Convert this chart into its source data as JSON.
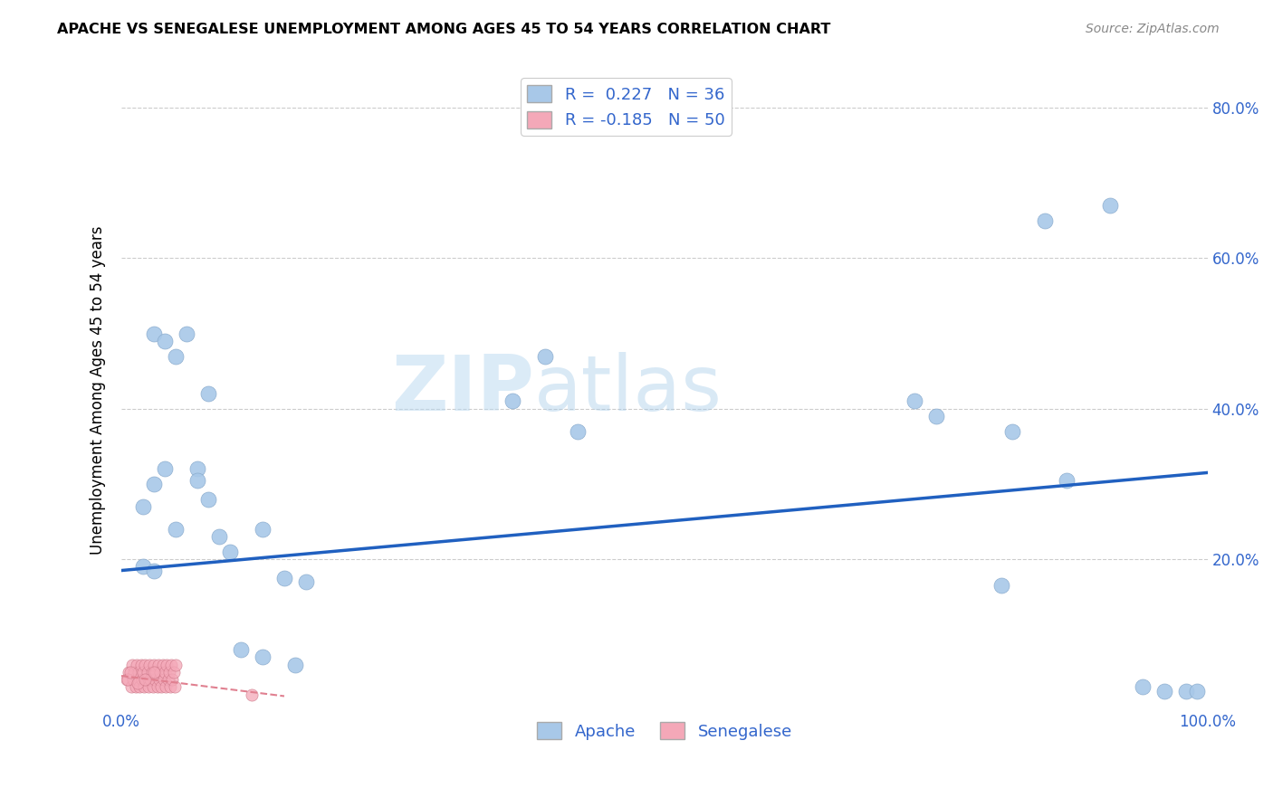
{
  "title": "APACHE VS SENEGALESE UNEMPLOYMENT AMONG AGES 45 TO 54 YEARS CORRELATION CHART",
  "source": "Source: ZipAtlas.com",
  "ylabel": "Unemployment Among Ages 45 to 54 years",
  "xlim": [
    0.0,
    1.0
  ],
  "ylim": [
    0.0,
    0.85
  ],
  "xticks": [
    0.0,
    0.5,
    1.0
  ],
  "xticklabels": [
    "0.0%",
    "",
    "100.0%"
  ],
  "yticks": [
    0.2,
    0.4,
    0.6,
    0.8
  ],
  "yticklabels": [
    "20.0%",
    "40.0%",
    "60.0%",
    "80.0%"
  ],
  "apache_R": 0.227,
  "apache_N": 36,
  "senegalese_R": -0.185,
  "senegalese_N": 50,
  "apache_color": "#a8c8e8",
  "senegalese_color": "#f4a8b8",
  "apache_line_color": "#2060c0",
  "senegalese_line_color": "#e08090",
  "grid_color": "#cccccc",
  "watermark_color": "#d0e8f8",
  "apache_line_x0": 0.0,
  "apache_line_y0": 0.185,
  "apache_line_x1": 1.0,
  "apache_line_y1": 0.315,
  "senegalese_line_x0": 0.0,
  "senegalese_line_y0": 0.045,
  "senegalese_line_x1": 0.15,
  "senegalese_line_y1": 0.018,
  "apache_x": [
    0.02,
    0.03,
    0.03,
    0.04,
    0.05,
    0.06,
    0.07,
    0.08,
    0.08,
    0.1,
    0.13,
    0.15,
    0.36,
    0.39,
    0.42,
    0.73,
    0.75,
    0.82,
    0.85,
    0.91,
    0.94,
    0.96,
    0.98,
    0.99,
    0.81,
    0.87,
    0.02,
    0.03,
    0.04,
    0.05,
    0.07,
    0.09,
    0.11,
    0.13,
    0.16,
    0.17
  ],
  "apache_y": [
    0.19,
    0.185,
    0.5,
    0.49,
    0.47,
    0.5,
    0.32,
    0.28,
    0.42,
    0.21,
    0.24,
    0.175,
    0.41,
    0.47,
    0.37,
    0.41,
    0.39,
    0.37,
    0.65,
    0.67,
    0.03,
    0.025,
    0.025,
    0.025,
    0.165,
    0.305,
    0.27,
    0.3,
    0.32,
    0.24,
    0.305,
    0.23,
    0.08,
    0.07,
    0.06,
    0.17
  ],
  "senegalese_x": [
    0.005,
    0.007,
    0.009,
    0.01,
    0.011,
    0.012,
    0.013,
    0.014,
    0.015,
    0.016,
    0.017,
    0.018,
    0.019,
    0.02,
    0.021,
    0.022,
    0.023,
    0.024,
    0.025,
    0.026,
    0.027,
    0.028,
    0.029,
    0.03,
    0.031,
    0.032,
    0.033,
    0.034,
    0.035,
    0.036,
    0.037,
    0.038,
    0.039,
    0.04,
    0.041,
    0.042,
    0.043,
    0.044,
    0.045,
    0.046,
    0.047,
    0.048,
    0.049,
    0.05,
    0.006,
    0.008,
    0.015,
    0.022,
    0.03,
    0.12
  ],
  "senegalese_y": [
    0.04,
    0.05,
    0.03,
    0.06,
    0.04,
    0.05,
    0.03,
    0.06,
    0.04,
    0.05,
    0.03,
    0.06,
    0.04,
    0.05,
    0.03,
    0.06,
    0.04,
    0.05,
    0.03,
    0.06,
    0.04,
    0.05,
    0.03,
    0.06,
    0.04,
    0.05,
    0.03,
    0.06,
    0.04,
    0.05,
    0.03,
    0.06,
    0.04,
    0.05,
    0.03,
    0.06,
    0.04,
    0.05,
    0.03,
    0.06,
    0.04,
    0.05,
    0.03,
    0.06,
    0.04,
    0.05,
    0.035,
    0.04,
    0.05,
    0.02
  ]
}
